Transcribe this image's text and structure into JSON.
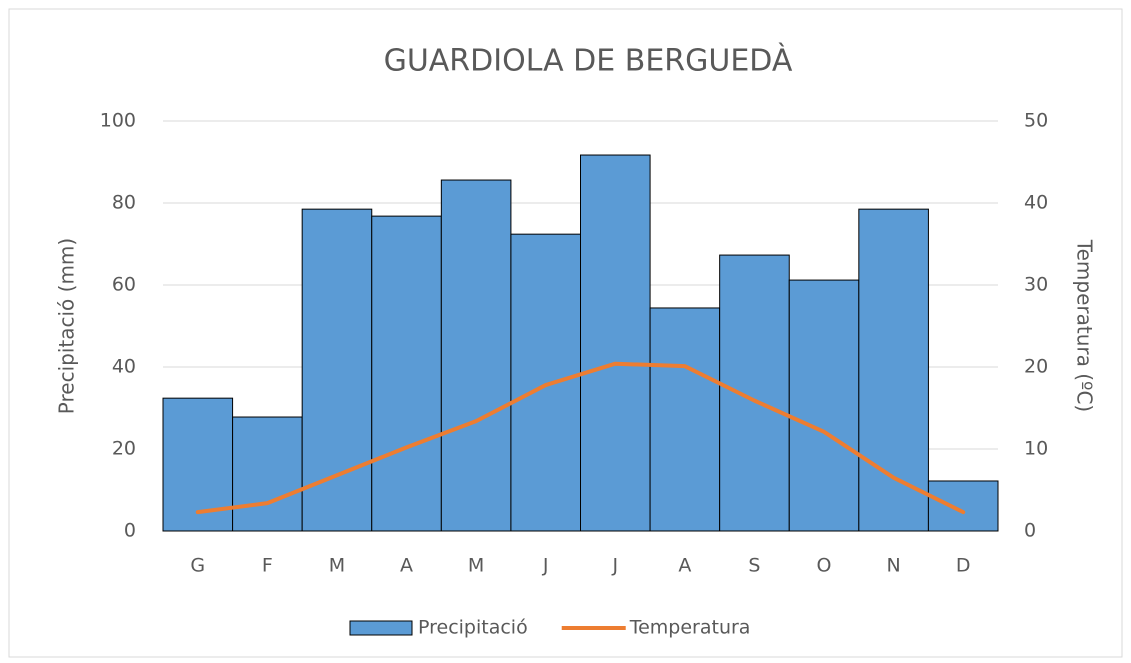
{
  "chart_data": {
    "type": "bar_line",
    "title": "GUARDIOLA DE BERGUEDÀ",
    "ylabel": "Precipitació (mm)",
    "y2label": "Temperatura (ºC)",
    "categories": [
      "G",
      "F",
      "M",
      "A",
      "M",
      "J",
      "J",
      "A",
      "S",
      "O",
      "N",
      "D"
    ],
    "series": [
      {
        "name": "Precipitació",
        "type": "bar",
        "color": "#5b9bd5",
        "values": [
          32.4,
          27.8,
          78.5,
          76.8,
          85.6,
          72.4,
          91.7,
          54.4,
          67.3,
          61.2,
          78.5,
          12.2
        ]
      },
      {
        "name": "Temperatura",
        "type": "line",
        "axis": "y2",
        "color": "#ed7d31",
        "values": [
          2.3,
          3.4,
          6.8,
          10.2,
          13.4,
          17.8,
          20.4,
          20.1,
          15.9,
          12.1,
          6.5,
          2.3
        ]
      }
    ],
    "ylim": [
      0,
      100
    ],
    "yticks": [
      0,
      20,
      40,
      60,
      80,
      100
    ],
    "y2lim": [
      0,
      50
    ],
    "y2ticks": [
      0,
      10,
      20,
      30,
      40,
      50
    ],
    "grid": true,
    "legend": "bottom"
  }
}
